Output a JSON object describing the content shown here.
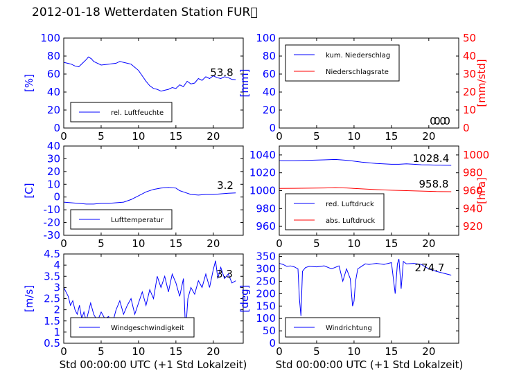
{
  "title": "2012-01-18 Wetterdaten Station FUR\u0000",
  "xlabel": "Std 00:00:00 UTC (+1 Std Lokalzeit)",
  "colors": {
    "primary": "#0000ff",
    "secondary": "#ff0000",
    "axis": "#000000"
  },
  "chart_data": [
    {
      "type": "line",
      "id": "humidity",
      "xlim": [
        0,
        24
      ],
      "xticks": [
        0,
        5,
        10,
        15,
        20
      ],
      "ylim": [
        0,
        100
      ],
      "yticks": [
        0,
        20,
        40,
        60,
        80,
        100
      ],
      "ylabel": "[%]",
      "current_value": "53.8",
      "series": [
        {
          "name": "rel. Luftfeuchte",
          "color": "#0000ff",
          "x": [
            0,
            0.5,
            1,
            1.5,
            2,
            2.5,
            3,
            3.3,
            3.7,
            4,
            5,
            6,
            7,
            7.5,
            8,
            9,
            10,
            10.5,
            11,
            11.5,
            12,
            12.5,
            13,
            13.5,
            14,
            14.5,
            15,
            15.5,
            16,
            16.5,
            17,
            17.5,
            18,
            18.5,
            19,
            19.5,
            20,
            20.5,
            21,
            21.5,
            22,
            22.5,
            23
          ],
          "y": [
            73,
            72,
            71,
            69,
            68,
            72,
            76,
            79,
            77,
            74,
            70,
            71,
            72,
            74,
            73,
            71,
            64,
            58,
            52,
            47,
            44,
            43,
            41,
            42,
            43,
            45,
            44,
            48,
            46,
            52,
            49,
            50,
            55,
            53,
            57,
            55,
            58,
            56,
            55,
            57,
            56,
            54,
            53.8
          ]
        }
      ]
    },
    {
      "type": "line",
      "id": "precipitation",
      "xlim": [
        0,
        24
      ],
      "xticks": [
        0,
        5,
        10,
        15,
        20
      ],
      "ylim": [
        0,
        100
      ],
      "yticks": [
        0,
        20,
        40,
        60,
        80,
        100
      ],
      "ylabel": "[mm]",
      "ylim2": [
        0,
        50
      ],
      "yticks2": [
        0,
        10,
        20,
        30,
        40,
        50
      ],
      "ylabel2": "[mm/std]",
      "current_value": "0.0",
      "current_value2": "0.0",
      "series": [
        {
          "name": "kum. Niederschlag",
          "color": "#0000ff",
          "axis": "left",
          "x": [
            0,
            23.5
          ],
          "y": [
            0,
            0
          ]
        },
        {
          "name": "Niederschlagsrate",
          "color": "#ff0000",
          "axis": "right",
          "x": [
            0,
            23.5
          ],
          "y": [
            0,
            0
          ]
        }
      ]
    },
    {
      "type": "line",
      "id": "temperature",
      "xlim": [
        0,
        24
      ],
      "xticks": [
        0,
        5,
        10,
        15,
        20
      ],
      "ylim": [
        -30,
        40
      ],
      "yticks": [
        -30,
        -20,
        -10,
        0,
        10,
        20,
        30,
        40
      ],
      "ylabel": "[C]",
      "current_value": "3.2",
      "series": [
        {
          "name": "Lufttemperatur",
          "color": "#0000ff",
          "x": [
            0,
            1,
            2,
            3,
            4,
            5,
            6,
            7,
            8,
            9,
            10,
            11,
            12,
            13,
            14,
            15,
            15.5,
            16,
            17,
            18,
            19,
            20,
            21,
            22,
            23
          ],
          "y": [
            -4,
            -4.5,
            -5,
            -5.5,
            -5.5,
            -5,
            -5,
            -4.5,
            -4,
            -2,
            1,
            4,
            6,
            7,
            7.5,
            7,
            5,
            4,
            2,
            1.5,
            2,
            2,
            2.5,
            3,
            3.2
          ]
        }
      ]
    },
    {
      "type": "line",
      "id": "pressure",
      "xlim": [
        0,
        24
      ],
      "xticks": [
        0,
        5,
        10,
        15,
        20
      ],
      "ylim": [
        950,
        1050
      ],
      "yticks": [
        960,
        980,
        1000,
        1020,
        1040
      ],
      "ylim2": [
        910,
        1010
      ],
      "yticks2": [
        920,
        940,
        960,
        980,
        1000
      ],
      "ylabel2": "[hPa]",
      "current_value": "1028.4",
      "current_value2": "958.8",
      "series": [
        {
          "name": "red. Luftdruck",
          "color": "#0000ff",
          "axis": "left",
          "x": [
            0,
            2,
            4,
            6,
            7.5,
            9,
            11,
            13,
            15,
            16,
            17,
            18,
            19,
            20,
            21,
            22,
            23
          ],
          "y": [
            1033.5,
            1033.5,
            1034,
            1034.5,
            1035,
            1034,
            1032,
            1030.5,
            1029.5,
            1029.5,
            1030,
            1029.5,
            1029,
            1028.8,
            1028.6,
            1028.5,
            1028.4
          ]
        },
        {
          "name": "abs. Luftdruck",
          "color": "#ff0000",
          "axis": "right",
          "x": [
            0,
            2,
            4,
            6,
            7.5,
            9,
            11,
            13,
            15,
            17,
            19,
            21,
            23
          ],
          "y": [
            962.5,
            962.6,
            962.8,
            963,
            963.3,
            963,
            962,
            961.2,
            960.5,
            960,
            959.5,
            959,
            958.8
          ]
        }
      ]
    },
    {
      "type": "line",
      "id": "windspeed",
      "xlim": [
        0,
        24
      ],
      "xticks": [
        0,
        5,
        10,
        15,
        20
      ],
      "ylim": [
        0.5,
        4.5
      ],
      "yticks": [
        0.5,
        1.0,
        1.5,
        2.0,
        2.5,
        3.0,
        3.5,
        4.0,
        4.5
      ],
      "ylabel": "[m/s]",
      "current_value": "3.3",
      "series": [
        {
          "name": "Windgeschwindigkeit",
          "color": "#0000ff",
          "x": [
            0,
            0.3,
            0.6,
            0.9,
            1.2,
            1.5,
            1.8,
            2.1,
            2.4,
            2.7,
            3.0,
            3.3,
            3.6,
            4.0,
            4.5,
            5.0,
            5.5,
            6.0,
            6.3,
            6.6,
            7.0,
            7.5,
            8.0,
            8.5,
            9.0,
            9.5,
            10.0,
            10.5,
            11.0,
            11.5,
            12.0,
            12.5,
            13.0,
            13.5,
            14.0,
            14.5,
            15.0,
            15.5,
            16.0,
            16.3,
            16.6,
            17.0,
            17.5,
            18.0,
            18.5,
            19.0,
            19.5,
            20.0,
            20.3,
            20.6,
            21.0,
            21.5,
            22.0,
            22.5,
            23.0
          ],
          "y": [
            3.0,
            2.8,
            2.6,
            2.2,
            2.4,
            2.0,
            1.8,
            2.2,
            1.6,
            1.9,
            1.5,
            1.9,
            2.3,
            1.8,
            1.5,
            1.9,
            1.6,
            1.7,
            1.2,
            1.5,
            2.0,
            2.4,
            1.8,
            2.2,
            2.5,
            1.8,
            2.3,
            2.8,
            2.2,
            2.9,
            2.5,
            3.5,
            3.0,
            3.5,
            2.8,
            3.6,
            3.2,
            2.6,
            3.4,
            1.0,
            2.5,
            3.0,
            2.7,
            3.3,
            3.0,
            3.6,
            3.0,
            3.8,
            4.2,
            3.4,
            3.9,
            3.4,
            3.6,
            3.2,
            3.3
          ]
        }
      ]
    },
    {
      "type": "line",
      "id": "winddirection",
      "xlim": [
        0,
        24
      ],
      "xticks": [
        0,
        5,
        10,
        15,
        20
      ],
      "ylim": [
        0,
        360
      ],
      "yticks": [
        0,
        50,
        100,
        150,
        200,
        250,
        300,
        350
      ],
      "ylabel": "[deg]",
      "current_value": "274.7",
      "series": [
        {
          "name": "Windrichtung",
          "color": "#0000ff",
          "x": [
            0,
            0.5,
            1,
            1.5,
            2,
            2.5,
            2.7,
            2.9,
            3.1,
            3.5,
            4,
            5,
            6,
            7,
            8,
            8.5,
            9,
            9.5,
            9.8,
            10,
            10.2,
            10.5,
            11,
            11.5,
            12,
            13,
            14,
            15,
            15.5,
            15.8,
            16,
            16.3,
            16.6,
            17,
            18,
            19,
            20,
            21,
            22,
            23
          ],
          "y": [
            322,
            318,
            310,
            312,
            308,
            300,
            180,
            110,
            290,
            305,
            310,
            308,
            312,
            300,
            312,
            250,
            300,
            260,
            150,
            170,
            250,
            300,
            310,
            320,
            318,
            322,
            318,
            325,
            200,
            320,
            340,
            220,
            330,
            320,
            322,
            318,
            300,
            290,
            282,
            274.7
          ]
        }
      ]
    }
  ]
}
